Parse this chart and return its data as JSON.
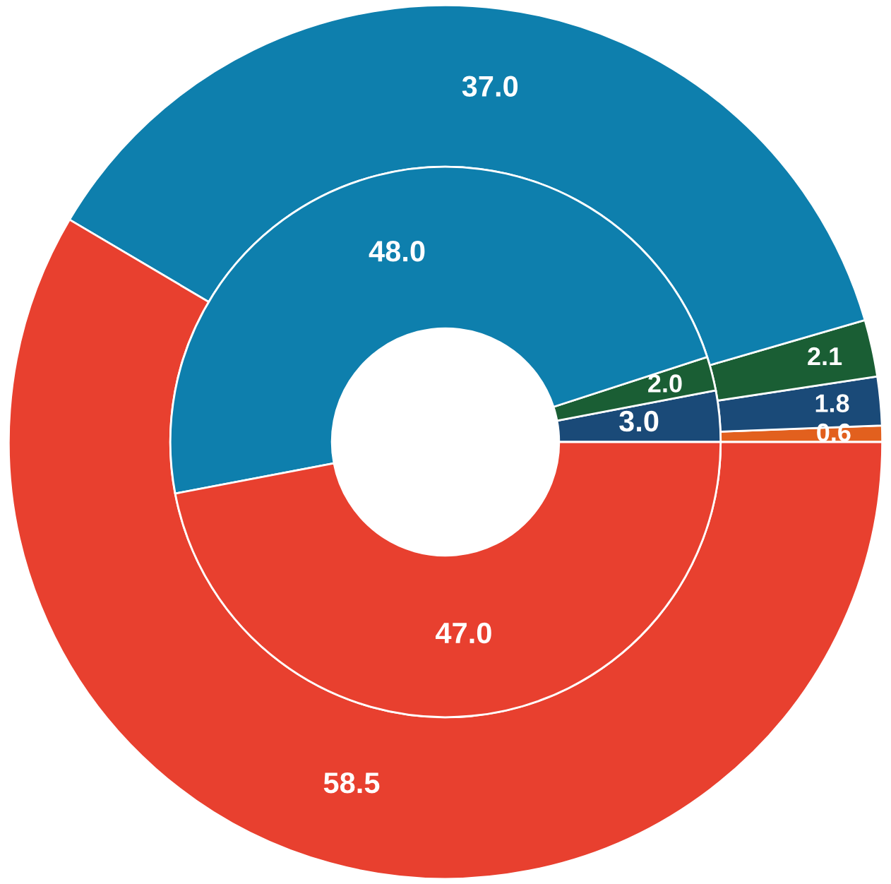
{
  "chart_data": {
    "type": "donut",
    "categories": [
      null,
      null,
      null,
      null,
      null
    ],
    "series": [
      {
        "values": [
          0.6,
          1.8,
          2.1,
          37,
          58.5
        ],
        "value_labels": [
          "0.6",
          "1.8",
          "2.1",
          "37.0",
          "58.5"
        ],
        "colors": [
          "#e2601e",
          "#1a4a78",
          "#1a5e34",
          "#0e7fad",
          "#e8402f"
        ]
      },
      {
        "values": [
          null,
          3,
          2,
          48,
          47
        ],
        "value_labels": [
          null,
          "3.0",
          "2.0",
          "48.0",
          "47.0"
        ],
        "colors": [
          "#e2601e",
          "#1a4a78",
          "#1a5e34",
          "#0e7fad",
          "#e8402f"
        ]
      }
    ]
  }
}
